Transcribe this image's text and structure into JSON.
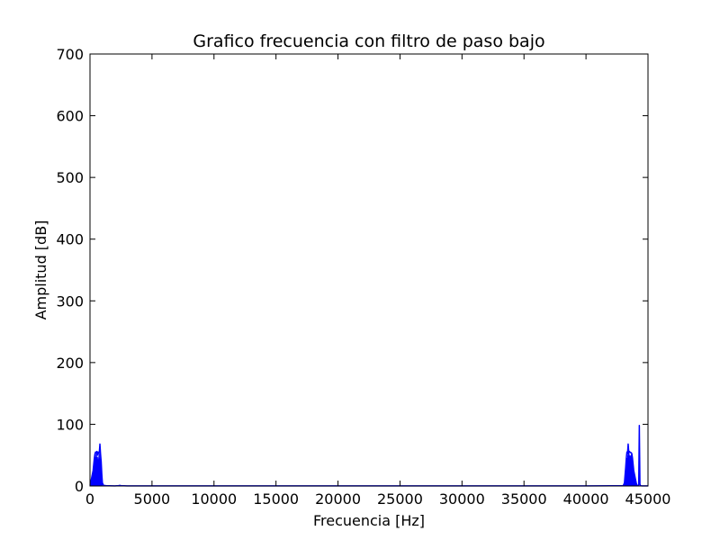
{
  "chart_data": {
    "type": "line",
    "title": "Grafico frecuencia con filtro de paso bajo",
    "xlabel": "Frecuencia [Hz]",
    "ylabel": "Amplitud [dB]",
    "xlim": [
      0,
      45000
    ],
    "ylim": [
      0,
      700
    ],
    "xticks": [
      0,
      5000,
      10000,
      15000,
      20000,
      25000,
      30000,
      35000,
      40000,
      45000
    ],
    "xtick_labels": [
      "0",
      "5000",
      "10000",
      "15000",
      "20000",
      "25000",
      "30000",
      "35000",
      "40000",
      "45000"
    ],
    "yticks": [
      0,
      100,
      200,
      300,
      400,
      500,
      600,
      700
    ],
    "ytick_labels": [
      "0",
      "100",
      "200",
      "300",
      "400",
      "500",
      "600",
      "700"
    ],
    "grid": false,
    "series": [
      {
        "color": "#0000ff",
        "x": [
          0,
          30,
          60,
          100,
          150,
          200,
          250,
          300,
          350,
          400,
          450,
          500,
          550,
          600,
          650,
          700,
          750,
          800,
          850,
          900,
          950,
          1000,
          1100,
          1300,
          1600,
          2000,
          2300,
          2400,
          2500,
          3000,
          40000,
          42000,
          43000,
          43100,
          43200,
          43250,
          43300,
          43350,
          43400,
          43450,
          43500,
          43550,
          43600,
          43650,
          43700,
          43750,
          43800,
          43850,
          43900,
          43950,
          44000,
          44050,
          44100,
          44150,
          44200,
          44250,
          44300,
          44350,
          44400,
          44450,
          44500,
          44600,
          44800,
          45000
        ],
        "y": [
          1,
          3,
          5,
          10,
          15,
          20,
          25,
          35,
          45,
          52,
          55,
          54,
          56,
          50,
          55,
          53,
          54,
          68,
          52,
          40,
          20,
          5,
          1,
          0.5,
          0.3,
          0.2,
          0.5,
          1,
          0.5,
          0.2,
          0.2,
          0.3,
          0.5,
          5,
          30,
          45,
          55,
          53,
          68,
          55,
          56,
          55,
          54,
          54,
          52,
          45,
          35,
          25,
          20,
          15,
          10,
          5,
          2,
          1,
          0.5,
          0.5,
          98,
          3,
          0.5,
          0.3,
          0.2,
          0.2,
          0.2,
          0.2
        ]
      }
    ]
  }
}
